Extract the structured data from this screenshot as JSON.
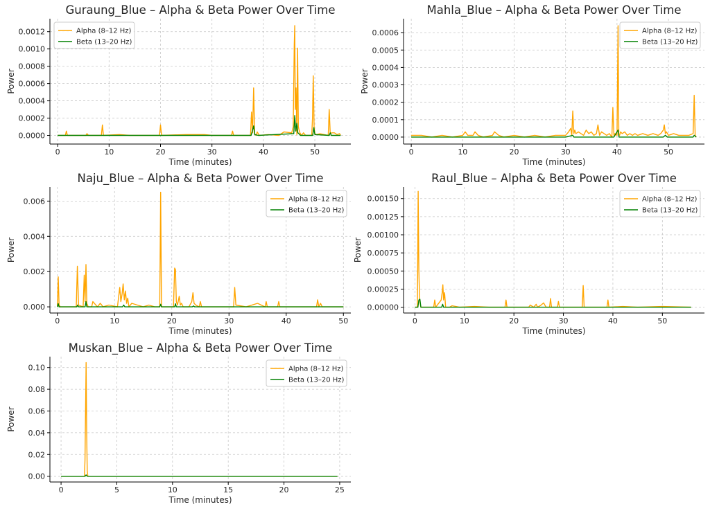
{
  "colors": {
    "alpha": "#ffa500",
    "beta": "#008000",
    "grid": "#b0b0b0",
    "axis": "#000000"
  },
  "chart_data": [
    {
      "type": "line",
      "title": "Guraung_Blue – Alpha & Beta Power Over Time",
      "xlabel": "Time (minutes)",
      "ylabel": "Power",
      "xlim": [
        -1.5,
        57
      ],
      "ylim": [
        -0.0001,
        0.00135
      ],
      "xticks": [
        0,
        10,
        20,
        30,
        40,
        50
      ],
      "xtick_labels": [
        "0",
        "10",
        "20",
        "30",
        "40",
        "50"
      ],
      "yticks": [
        0,
        0.0002,
        0.0004,
        0.0006,
        0.0008,
        0.001,
        0.0012
      ],
      "ytick_labels": [
        "0.0000",
        "0.0002",
        "0.0004",
        "0.0006",
        "0.0008",
        "0.0010",
        "0.0012"
      ],
      "grid": true,
      "legend": "top-left",
      "series": [
        {
          "name": "Alpha (8–12 Hz)",
          "color": "#ffa500",
          "x": [
            0,
            1.5,
            1.7,
            1.9,
            3,
            5.5,
            5.7,
            6,
            8.5,
            8.7,
            8.9,
            12,
            14,
            19.8,
            20,
            20.2,
            25,
            28.5,
            30,
            33.8,
            34,
            34.2,
            36,
            37.5,
            37.7,
            37.9,
            38.1,
            38.3,
            38.6,
            38.8,
            39.2,
            41,
            43,
            44,
            45.5,
            45.8,
            46,
            46.1,
            46.2,
            46.35,
            46.5,
            46.65,
            46.8,
            46.95,
            47.1,
            47.4,
            47.8,
            48.2,
            49.4,
            49.55,
            49.7,
            49.85,
            50,
            50.3,
            51,
            52.6,
            52.8,
            53,
            53.3,
            53.8,
            54.3,
            54.8,
            55
          ],
          "y": [
            0,
            0,
            5e-05,
            0,
            0,
            0,
            2e-05,
            0,
            0,
            0.00012,
            0,
            1e-05,
            0,
            0,
            0.00012,
            0,
            1e-05,
            1e-05,
            0,
            0,
            5e-05,
            0,
            0,
            0,
            0.00027,
            3e-05,
            0.00055,
            2e-05,
            0,
            4e-05,
            0,
            1e-05,
            0,
            4e-05,
            3e-05,
            0.0001,
            0.00105,
            0.00127,
            0.0003,
            0.00055,
            1e-05,
            0.00101,
            0.0001,
            6e-05,
            3e-05,
            0,
            3e-05,
            0,
            0,
            0.0002,
            0.00069,
            0.0001,
            2e-05,
            1e-05,
            2e-05,
            0,
            0.0003,
            2e-05,
            3e-05,
            3e-05,
            1e-05,
            2e-05,
            0
          ]
        },
        {
          "name": "Beta (13–20 Hz)",
          "color": "#008000",
          "x": [
            0,
            37.6,
            37.8,
            38.1,
            38.3,
            39,
            45.9,
            46.1,
            46.3,
            46.5,
            46.7,
            46.9,
            47.2,
            49.6,
            49.8,
            50,
            52.8,
            53,
            53.2,
            55
          ],
          "y": [
            0,
            0,
            4e-05,
            0.00011,
            1e-05,
            0,
            2e-05,
            0.00023,
            5e-05,
            0.00014,
            3e-05,
            2e-05,
            0,
            0,
            9e-05,
            1e-05,
            0,
            3e-05,
            0,
            0
          ]
        }
      ]
    },
    {
      "type": "line",
      "title": "Mahla_Blue – Alpha & Beta Power Over Time",
      "xlabel": "Time (minutes)",
      "ylabel": "Power",
      "xlim": [
        -1.5,
        57
      ],
      "ylim": [
        -4e-05,
        0.00068
      ],
      "xticks": [
        0,
        10,
        20,
        30,
        40,
        50
      ],
      "xtick_labels": [
        "0",
        "10",
        "20",
        "30",
        "40",
        "50"
      ],
      "yticks": [
        0,
        0.0001,
        0.0002,
        0.0003,
        0.0004,
        0.0005,
        0.0006
      ],
      "ytick_labels": [
        "0.0000",
        "0.0001",
        "0.0002",
        "0.0003",
        "0.0004",
        "0.0005",
        "0.0006"
      ],
      "grid": true,
      "legend": "top-right",
      "series": [
        {
          "name": "Alpha (8–12 Hz)",
          "color": "#ffa500",
          "x": [
            0,
            2,
            4,
            6,
            8,
            10,
            10.5,
            11,
            12,
            12.4,
            13,
            14,
            15.8,
            16.2,
            17,
            18,
            20,
            22,
            24,
            26,
            28,
            30,
            30.6,
            31,
            31.2,
            31.4,
            31.6,
            31.8,
            32,
            32.5,
            33,
            33.5,
            34,
            34.5,
            35,
            35.5,
            36,
            36.3,
            36.6,
            37,
            37.5,
            38,
            38.5,
            39,
            39.2,
            39.4,
            39.6,
            40,
            40.2,
            40.35,
            40.5,
            40.7,
            41,
            41.5,
            42,
            42.5,
            43,
            43.5,
            44,
            45,
            46,
            47,
            48,
            48.5,
            49,
            49.2,
            49.4,
            49.6,
            50,
            51,
            52,
            53,
            54,
            54.8,
            55,
            55.2,
            55.4
          ],
          "y": [
            1e-05,
            1e-05,
            0,
            1e-05,
            0,
            1e-05,
            3e-05,
            1e-05,
            1e-05,
            3e-05,
            1e-05,
            0,
            1e-05,
            3e-05,
            1e-05,
            0,
            1e-05,
            0,
            1e-05,
            0,
            1e-05,
            1e-05,
            3e-05,
            5e-05,
            1e-05,
            0.00015,
            2e-05,
            4e-05,
            2e-05,
            3e-05,
            2e-05,
            1e-05,
            4e-05,
            2e-05,
            3e-05,
            1e-05,
            2e-05,
            7e-05,
            1e-05,
            3e-05,
            2e-05,
            1e-05,
            2e-05,
            0,
            0.00017,
            1e-05,
            2e-05,
            1e-05,
            0.00064,
            2e-05,
            1e-05,
            3e-05,
            2e-05,
            3e-05,
            1e-05,
            2e-05,
            1e-05,
            2e-05,
            1e-05,
            2e-05,
            1e-05,
            2e-05,
            1e-05,
            2e-05,
            4e-05,
            7e-05,
            2e-05,
            3e-05,
            1e-05,
            2e-05,
            1e-05,
            1e-05,
            1e-05,
            2e-05,
            0.00024,
            1e-05,
            0
          ]
        },
        {
          "name": "Beta (13–20 Hz)",
          "color": "#008000",
          "x": [
            0,
            30,
            31.4,
            31.6,
            35,
            39.4,
            40.2,
            40.4,
            44,
            49,
            49.4,
            49.8,
            54.8,
            55,
            55.4
          ],
          "y": [
            0,
            0,
            1e-05,
            0,
            0,
            0,
            4e-05,
            0,
            0,
            0,
            1e-05,
            0,
            0,
            1e-05,
            0
          ]
        }
      ]
    },
    {
      "type": "line",
      "title": "Naju_Blue – Alpha & Beta Power Over Time",
      "xlabel": "Time (minutes)",
      "ylabel": "Power",
      "xlim": [
        -1.3,
        51.3
      ],
      "ylim": [
        -0.00035,
        0.0068
      ],
      "xticks": [
        0,
        10,
        20,
        30,
        40,
        50
      ],
      "xtick_labels": [
        "0",
        "10",
        "20",
        "30",
        "40",
        "50"
      ],
      "yticks": [
        0,
        0.002,
        0.004,
        0.006
      ],
      "ytick_labels": [
        "0.000",
        "0.002",
        "0.004",
        "0.006"
      ],
      "grid": true,
      "legend": "top-right",
      "series": [
        {
          "name": "Alpha (8–12 Hz)",
          "color": "#ffa500",
          "x": [
            0,
            0.15,
            0.3,
            0.5,
            2,
            3.3,
            3.5,
            3.7,
            4.5,
            4.7,
            4.85,
            5,
            5.15,
            5.4,
            6,
            6.2,
            7,
            7.5,
            8,
            9,
            10.5,
            10.9,
            11.1,
            11.3,
            11.5,
            11.7,
            11.9,
            12.1,
            12.3,
            12.5,
            13,
            14,
            15,
            16,
            17,
            17.9,
            18.05,
            18.2,
            19,
            20.3,
            20.5,
            20.65,
            20.8,
            21,
            21.3,
            21.5,
            21.7,
            22,
            23,
            23.5,
            23.7,
            23.9,
            24.2,
            24.8,
            25,
            25.2,
            27,
            30.8,
            31,
            31.2,
            33,
            35,
            36.3,
            36.5,
            36.7,
            38.5,
            38.7,
            38.9,
            42,
            45.3,
            45.5,
            45.7,
            46,
            46.3,
            47,
            50
          ],
          "y": [
            0,
            0.0017,
            0.0001,
            0,
            0,
            0,
            0.0023,
            0.0001,
            0,
            0.0018,
            0.0003,
            0.0024,
            0.0002,
            0,
            0,
            0.0003,
            0,
            0.0002,
            0,
            0.0001,
            0,
            0.0011,
            0.0003,
            0.0007,
            0.0013,
            0.0004,
            0.0009,
            0.0002,
            0.0005,
            0,
            0.0002,
            0.0001,
            0,
            0.0001,
            0,
            0,
            0.0065,
            0,
            0,
            0,
            0.0022,
            0.0021,
            0.0003,
            0.0001,
            0.0006,
            0.0001,
            0.0002,
            0,
            0,
            0.0003,
            0.0008,
            0.0002,
            0.0001,
            0,
            0.0003,
            0,
            0,
            0,
            0.0011,
            0.0001,
            0,
            0.0002,
            0,
            0.0003,
            0,
            0,
            0.0003,
            0,
            0,
            0,
            0.0004,
            0,
            0.0002,
            0,
            0,
            0
          ]
        },
        {
          "name": "Beta (13–20 Hz)",
          "color": "#008000",
          "x": [
            0,
            0.15,
            0.3,
            3.4,
            3.55,
            3.7,
            4.85,
            5,
            5.15,
            11.4,
            11.6,
            11.8,
            17.9,
            18.05,
            18.2,
            20.5,
            20.65,
            20.8,
            23.6,
            23.8,
            24,
            50
          ],
          "y": [
            0,
            0.00018,
            0,
            0,
            0.0001,
            0,
            0,
            0.0003,
            0,
            0,
            0.0001,
            0,
            0,
            0.00015,
            0,
            0,
            0.00018,
            0,
            0,
            5e-05,
            0,
            0
          ]
        }
      ]
    },
    {
      "type": "line",
      "title": "Raul_Blue – Alpha & Beta Power Over Time",
      "xlabel": "Time (minutes)",
      "ylabel": "Power",
      "xlim": [
        -2.3,
        58.5
      ],
      "ylim": [
        -8e-05,
        0.00166
      ],
      "xticks": [
        0,
        10,
        20,
        30,
        40,
        50
      ],
      "xtick_labels": [
        "0",
        "10",
        "20",
        "30",
        "40",
        "50"
      ],
      "yticks": [
        0,
        0.00025,
        0.0005,
        0.00075,
        0.001,
        0.00125,
        0.0015
      ],
      "ytick_labels": [
        "0.00000",
        "0.00025",
        "0.00050",
        "0.00075",
        "0.00100",
        "0.00125",
        "0.00150"
      ],
      "grid": true,
      "legend": "top-right",
      "series": [
        {
          "name": "Alpha (8–12 Hz)",
          "color": "#ffa500",
          "x": [
            0,
            0.5,
            0.65,
            0.8,
            0.95,
            1.2,
            3.8,
            4,
            4.2,
            5.3,
            5.5,
            5.65,
            5.8,
            6,
            6.2,
            7,
            7.5,
            9,
            12,
            15,
            18.2,
            18.4,
            18.6,
            20,
            23,
            23.3,
            24,
            24.5,
            24.8,
            25.5,
            26,
            26.5,
            27.2,
            27.4,
            27.6,
            28.8,
            29,
            29.2,
            31,
            33.8,
            34,
            34.2,
            36,
            38.8,
            39,
            39.2,
            42,
            45,
            50,
            55.8
          ],
          "y": [
            0,
            0,
            0.0016,
            0.0005,
            0.0001,
            0,
            0,
            0.0001,
            0,
            0.0001,
            0.0002,
            0.00031,
            0.0001,
            0.0002,
            0,
            0,
            2e-05,
            0,
            1e-05,
            0,
            0,
            0.0001,
            0,
            0,
            0,
            3e-05,
            0,
            4e-05,
            0,
            3e-05,
            6e-05,
            0,
            0,
            0.00012,
            0,
            0,
            8e-05,
            0,
            0,
            0,
            0.0003,
            0,
            0,
            0,
            0.0001,
            0,
            1e-05,
            0,
            1e-05,
            0
          ]
        },
        {
          "name": "Beta (13–20 Hz)",
          "color": "#008000",
          "x": [
            0,
            0.6,
            0.8,
            1.0,
            1.2,
            5.4,
            5.6,
            5.8,
            55.8
          ],
          "y": [
            0,
            0,
            0.0001,
            0.00011,
            0,
            0,
            4e-05,
            0,
            0
          ]
        }
      ]
    },
    {
      "type": "line",
      "title": "Muskan_Blue – Alpha & Beta Power Over Time",
      "xlabel": "Time (minutes)",
      "ylabel": "Power",
      "xlim": [
        -1,
        26
      ],
      "ylim": [
        -0.0053,
        0.11
      ],
      "xticks": [
        0,
        5,
        10,
        15,
        20,
        25
      ],
      "xtick_labels": [
        "0",
        "5",
        "10",
        "15",
        "20",
        "25"
      ],
      "yticks": [
        0,
        0.02,
        0.04,
        0.06,
        0.08,
        0.1
      ],
      "ytick_labels": [
        "0.00",
        "0.02",
        "0.04",
        "0.06",
        "0.08",
        "0.10"
      ],
      "grid": true,
      "legend": "top-right",
      "series": [
        {
          "name": "Alpha (8–12 Hz)",
          "color": "#ffa500",
          "x": [
            0,
            2.1,
            2.15,
            2.2,
            2.25,
            2.3,
            2.35,
            2.4,
            24.8
          ],
          "y": [
            0,
            0,
            0.015,
            0.06,
            0.1045,
            0.04,
            0.005,
            0,
            0
          ]
        },
        {
          "name": "Beta (13–20 Hz)",
          "color": "#008000",
          "x": [
            0,
            2.15,
            2.25,
            2.35,
            24.8
          ],
          "y": [
            0,
            0,
            0.0012,
            0,
            0
          ]
        }
      ]
    }
  ]
}
